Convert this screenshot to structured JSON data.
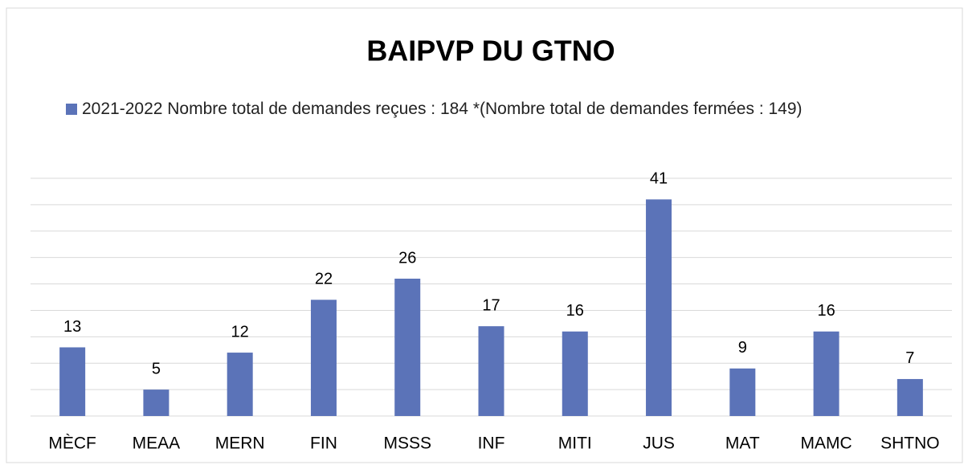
{
  "chart_data": {
    "type": "bar",
    "title": "BAIPVP DU GTNO",
    "categories": [
      "MÈCF",
      "MEAA",
      "MERN",
      "FIN",
      "MSSS",
      "INF",
      "MITI",
      "JUS",
      "MAT",
      "MAMC",
      "SHTNO"
    ],
    "series": [
      {
        "name": "2021-2022 Nombre total de demandes reçues : 184 *(Nombre total de demandes fermées : 149)",
        "color": "#5b73b8",
        "values": [
          13,
          5,
          12,
          22,
          26,
          17,
          16,
          41,
          9,
          16,
          7
        ]
      }
    ],
    "ylim": [
      0,
      45
    ],
    "yticks": [
      0,
      5,
      10,
      15,
      20,
      25,
      30,
      35,
      40,
      45
    ],
    "grid": true
  }
}
